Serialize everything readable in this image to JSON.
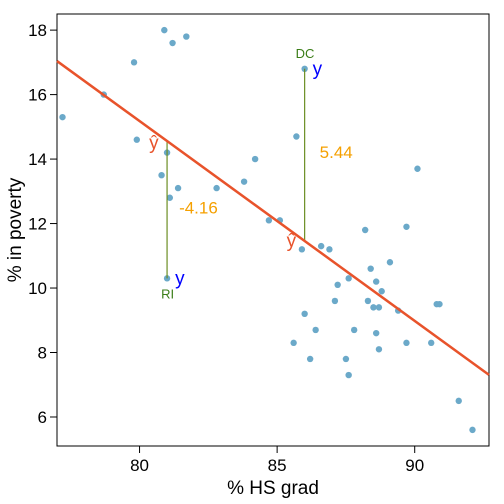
{
  "chart_data": {
    "type": "scatter",
    "xlabel": "% HS grad",
    "ylabel": "% in poverty",
    "xlim": [
      77,
      92.7
    ],
    "ylim": [
      5.1,
      18.5
    ],
    "x_ticks": [
      80,
      85,
      90
    ],
    "y_ticks": [
      6,
      8,
      10,
      12,
      14,
      16,
      18
    ],
    "grid": false,
    "colors": {
      "points": "#6ba9c9",
      "regression": "#e8532b",
      "residual": "#6b8e23",
      "label_y": "#0000ff",
      "residual_text": "#f5a000",
      "state_label": "#3a7d17"
    },
    "points": [
      [
        77.2,
        15.3
      ],
      [
        78.7,
        16.0
      ],
      [
        79.8,
        17.0
      ],
      [
        79.9,
        14.6
      ],
      [
        80.9,
        18.0
      ],
      [
        81.2,
        17.6
      ],
      [
        81.7,
        17.8
      ],
      [
        80.8,
        13.5
      ],
      [
        81.0,
        14.2
      ],
      [
        81.1,
        12.8
      ],
      [
        81.4,
        13.1
      ],
      [
        81.0,
        10.3
      ],
      [
        82.8,
        13.1
      ],
      [
        83.8,
        13.3
      ],
      [
        84.2,
        14.0
      ],
      [
        84.7,
        12.1
      ],
      [
        85.1,
        12.1
      ],
      [
        85.7,
        14.7
      ],
      [
        85.9,
        11.2
      ],
      [
        86.0,
        16.8
      ],
      [
        86.6,
        11.3
      ],
      [
        86.9,
        11.2
      ],
      [
        86.0,
        9.2
      ],
      [
        86.4,
        8.7
      ],
      [
        85.6,
        8.3
      ],
      [
        86.2,
        7.8
      ],
      [
        87.2,
        10.1
      ],
      [
        87.6,
        10.3
      ],
      [
        87.1,
        9.6
      ],
      [
        87.8,
        8.7
      ],
      [
        87.5,
        7.8
      ],
      [
        87.6,
        7.3
      ],
      [
        88.2,
        11.8
      ],
      [
        88.4,
        10.6
      ],
      [
        88.6,
        10.2
      ],
      [
        88.3,
        9.6
      ],
      [
        88.8,
        9.9
      ],
      [
        88.5,
        9.4
      ],
      [
        88.7,
        9.4
      ],
      [
        88.6,
        8.6
      ],
      [
        88.7,
        8.1
      ],
      [
        89.1,
        10.8
      ],
      [
        89.4,
        9.3
      ],
      [
        89.7,
        11.9
      ],
      [
        89.7,
        8.3
      ],
      [
        90.1,
        13.7
      ],
      [
        90.6,
        8.3
      ],
      [
        90.8,
        9.5
      ],
      [
        90.9,
        9.5
      ],
      [
        91.6,
        6.5
      ],
      [
        92.1,
        5.6
      ]
    ],
    "regression": {
      "intercept": 64.78,
      "slope": -0.62
    },
    "annotations": {
      "dc": {
        "label": "DC",
        "y_label": "y",
        "yhat_label": "ŷ",
        "residual_text": "5.44",
        "x": 86.0,
        "y": 16.8
      },
      "ri": {
        "label": "RI",
        "y_label": "y",
        "yhat_label": "ŷ",
        "residual_text": "-4.16",
        "x": 81.0,
        "y": 10.3
      }
    }
  }
}
